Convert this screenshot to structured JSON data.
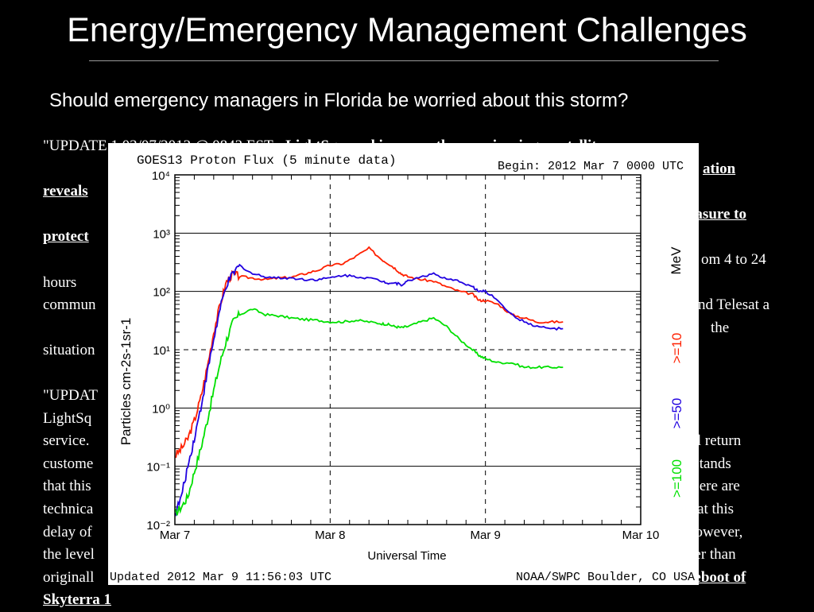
{
  "slide": {
    "title": "Energy/Emergency Management Challenges",
    "subtitle": "Should emergency managers in Florida be worried about this storm?"
  },
  "body": {
    "p1_start": "\"UPDATE 1 03/07/2012 @ 0843 EST - ",
    "p1_bold1": "LightSquared is currently experiencing a satellite",
    "p1_bold2": "ation reveals",
    "p1_bold3": "easure to protect",
    "p1_mid1": "om 4 to 24 hours",
    "p1_mid2": "commun",
    "p1_mid3": "ing and Telesat a",
    "p1_mid4": "the situation",
    "p2_start": "\"UPDAT",
    "p2_l2": "LightSq",
    "p2_l3a": "service.",
    "p2_l3b": "will return",
    "p2_l4a": "custome",
    "p2_l4b": "stands",
    "p2_l5a": "that this",
    "p2_l5b": "ere are",
    "p2_l6a": "technica",
    "p2_l6b": "that this",
    "p2_l7a": "delay of",
    "p2_l7b": "However,",
    "p2_l8a": "the level",
    "p2_l8b": "ger than",
    "p2_l9a": "originall",
    "p2_bold": "eboot of Skyterra 1"
  },
  "chart_data": {
    "type": "line",
    "title": "GOES13 Proton Flux (5 minute data)",
    "begin_label": "Begin: 2012 Mar 7 0000 UTC",
    "ylabel": "Particles cm-2s-1sr-1",
    "xlabel": "Universal Time",
    "y_scale": "log",
    "ylim": [
      0.01,
      10000
    ],
    "xlim_hours": [
      0,
      72
    ],
    "x_ticks": [
      "Mar 7",
      "Mar 8",
      "Mar 9",
      "Mar 10"
    ],
    "y_ticks": [
      "10⁻²",
      "10⁻¹",
      "10⁰",
      "10¹",
      "10²",
      "10³",
      "10⁴"
    ],
    "unit_label": "MeV",
    "alert_threshold": 10,
    "footer_left": "Updated 2012 Mar  9 11:56:03 UTC",
    "footer_right": "NOAA/SWPC Boulder, CO USA",
    "series": [
      {
        "name": ">=10",
        "color": "#ff2000",
        "x": [
          0,
          1,
          2,
          3,
          4,
          5,
          6,
          7,
          8,
          9,
          10,
          12,
          14,
          16,
          18,
          20,
          22,
          24,
          26,
          28,
          30,
          32,
          33,
          34,
          35,
          36,
          38,
          40,
          42,
          44,
          46,
          47,
          48,
          50,
          52,
          54,
          56,
          58,
          60
        ],
        "y": [
          0.15,
          0.2,
          0.3,
          0.6,
          1.5,
          5,
          20,
          60,
          150,
          200,
          180,
          170,
          160,
          170,
          175,
          200,
          230,
          280,
          300,
          400,
          550,
          350,
          300,
          250,
          200,
          180,
          160,
          150,
          120,
          100,
          90,
          70,
          70,
          60,
          40,
          35,
          30,
          30,
          30
        ]
      },
      {
        "name": ">=50",
        "color": "#2000e0",
        "x": [
          0,
          1,
          2,
          3,
          4,
          5,
          6,
          7,
          8,
          9,
          10,
          12,
          14,
          16,
          18,
          20,
          22,
          24,
          26,
          28,
          30,
          32,
          33,
          34,
          35,
          36,
          38,
          40,
          42,
          44,
          46,
          47,
          48,
          50,
          52,
          54,
          56,
          58,
          60
        ],
        "y": [
          0.015,
          0.03,
          0.1,
          0.3,
          1,
          4,
          15,
          50,
          130,
          200,
          280,
          200,
          180,
          170,
          170,
          160,
          160,
          170,
          190,
          180,
          170,
          150,
          140,
          140,
          130,
          150,
          180,
          200,
          160,
          150,
          120,
          100,
          100,
          70,
          40,
          30,
          25,
          23,
          23
        ]
      },
      {
        "name": ">=100",
        "color": "#00e000",
        "x": [
          0,
          1,
          2,
          3,
          4,
          5,
          6,
          7,
          8,
          9,
          10,
          12,
          14,
          16,
          18,
          20,
          22,
          24,
          26,
          28,
          30,
          32,
          33,
          34,
          35,
          36,
          38,
          40,
          42,
          44,
          46,
          47,
          48,
          50,
          52,
          54,
          56,
          58,
          60
        ],
        "y": [
          0.015,
          0.02,
          0.03,
          0.08,
          0.2,
          0.6,
          2,
          6,
          15,
          30,
          40,
          50,
          40,
          38,
          35,
          33,
          32,
          30,
          30,
          32,
          30,
          28,
          27,
          25,
          24,
          25,
          30,
          35,
          25,
          15,
          10,
          8,
          7,
          6,
          6,
          5,
          5,
          5,
          5
        ]
      }
    ]
  }
}
